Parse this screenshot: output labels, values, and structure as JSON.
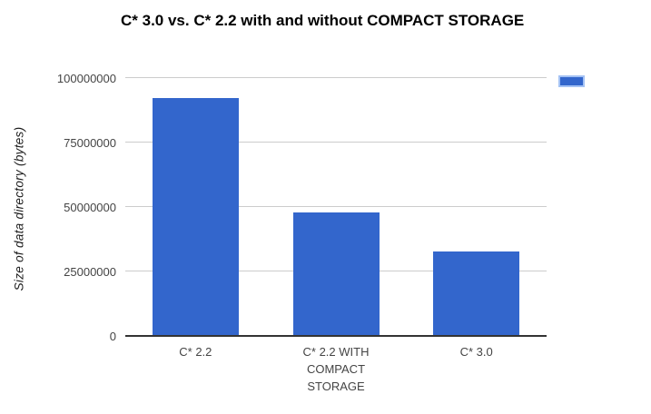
{
  "chart_data": {
    "type": "bar",
    "title": "C* 3.0 vs. C* 2.2 with and without COMPACT STORAGE",
    "ylabel": "Size of data directory (bytes)",
    "xlabel": "",
    "categories": [
      "C* 2.2",
      "C* 2.2 WITH COMPACT STORAGE",
      "C* 3.0"
    ],
    "values": [
      92000000,
      47500000,
      32500000
    ],
    "ylim": [
      0,
      100000000
    ],
    "yticks": [
      0,
      25000000,
      50000000,
      75000000,
      100000000
    ],
    "ytick_labels": [
      "0",
      "25000000",
      "50000000",
      "75000000",
      "100000000"
    ],
    "grid": true,
    "legend_position": "top-right",
    "colors": {
      "bar_fill": "#3366CC",
      "legend_swatch_border": "#A4C2F4",
      "gridline": "#CCCCCC",
      "axis_line": "#333333",
      "tick_text": "#444444",
      "title_text": "#000000"
    }
  }
}
